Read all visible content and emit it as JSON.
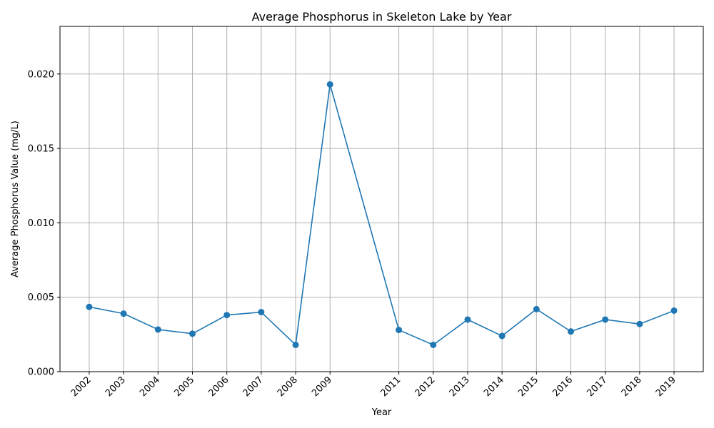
{
  "chart_data": {
    "type": "line",
    "title": "Average Phosphorus in Skeleton Lake by Year",
    "xlabel": "Year",
    "ylabel": "Average Phosphorus Value (mg/L)",
    "x": [
      2002,
      2003,
      2004,
      2005,
      2006,
      2007,
      2008,
      2009,
      2011,
      2012,
      2013,
      2014,
      2015,
      2016,
      2017,
      2018,
      2019
    ],
    "x_tick_labels": [
      "2002",
      "2003",
      "2004",
      "2005",
      "2006",
      "2007",
      "2008",
      "2009",
      "2011",
      "2012",
      "2013",
      "2014",
      "2015",
      "2016",
      "2017",
      "2018",
      "2019"
    ],
    "series": [
      {
        "values": [
          0.00435,
          0.0039,
          0.00283,
          0.00255,
          0.0038,
          0.004,
          0.0018,
          0.0193,
          0.0028,
          0.0018,
          0.0035,
          0.0024,
          0.0042,
          0.0027,
          0.0035,
          0.0032,
          0.0041
        ],
        "color": "#1f77b4",
        "marker": "circle"
      }
    ],
    "xlim": [
      2001.15,
      2019.85
    ],
    "ylim": [
      0,
      0.0232
    ],
    "y_ticks": [
      0,
      0.005,
      0.01,
      0.015,
      0.02
    ],
    "y_tick_labels": [
      "0.000",
      "0.005",
      "0.010",
      "0.015",
      "0.020"
    ],
    "grid": true,
    "x_tick_rotation_deg": 45
  }
}
